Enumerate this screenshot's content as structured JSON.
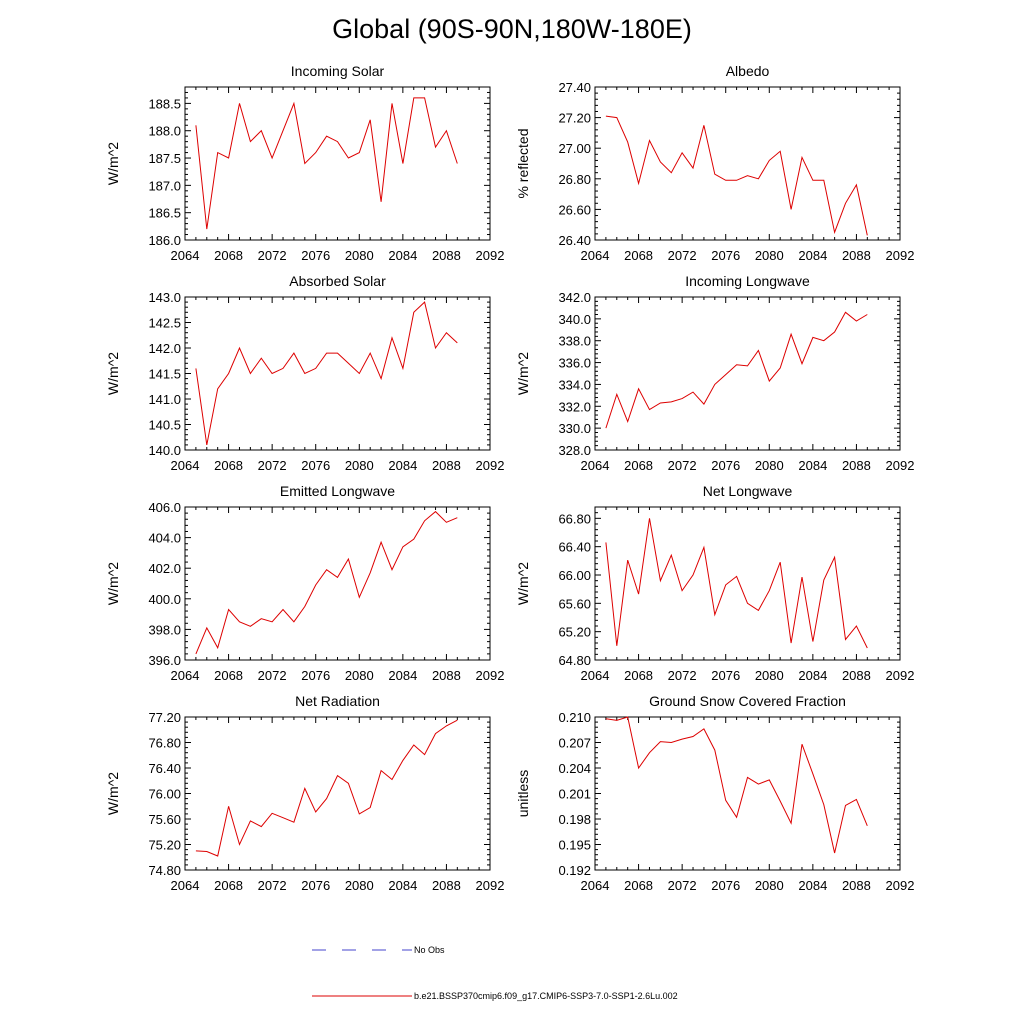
{
  "title": "Global (90S-90N,180W-180E)",
  "legend": {
    "obs_label": "No Obs",
    "model_label": "b.e21.BSSP370cmip6.f09_g17.CMIP6-SSP3-7.0-SSP1-2.6Lu.002",
    "obs_color": "#4444cc",
    "model_color": "#dd0000"
  },
  "chart_data": [
    {
      "type": "line",
      "title": "Incoming Solar",
      "ylabel": "W/m^2",
      "xlim": [
        2064,
        2092
      ],
      "ylim": [
        186.0,
        188.8
      ],
      "xticks": [
        "2064",
        "2068",
        "2072",
        "2076",
        "2080",
        "2084",
        "2088",
        "2092"
      ],
      "yticks": [
        "186.0",
        "186.5",
        "187.0",
        "187.5",
        "188.0",
        "188.5"
      ],
      "x": [
        2065,
        2066,
        2067,
        2068,
        2069,
        2070,
        2071,
        2072,
        2073,
        2074,
        2075,
        2076,
        2077,
        2078,
        2079,
        2080,
        2081,
        2082,
        2083,
        2084,
        2085,
        2086,
        2087,
        2088,
        2089
      ],
      "series": [
        {
          "values": [
            188.1,
            186.2,
            187.6,
            187.5,
            188.5,
            187.8,
            188.0,
            187.5,
            188.0,
            188.5,
            187.4,
            187.6,
            187.9,
            187.8,
            187.5,
            187.6,
            188.2,
            186.7,
            188.5,
            187.4,
            188.6,
            188.6,
            187.7,
            188.0,
            187.4
          ]
        }
      ]
    },
    {
      "type": "line",
      "title": "Albedo",
      "ylabel": "% reflected",
      "xlim": [
        2064,
        2092
      ],
      "ylim": [
        26.4,
        27.4
      ],
      "xticks": [
        "2064",
        "2068",
        "2072",
        "2076",
        "2080",
        "2084",
        "2088",
        "2092"
      ],
      "yticks": [
        "26.40",
        "26.60",
        "26.80",
        "27.00",
        "27.20",
        "27.40"
      ],
      "x": [
        2065,
        2066,
        2067,
        2068,
        2069,
        2070,
        2071,
        2072,
        2073,
        2074,
        2075,
        2076,
        2077,
        2078,
        2079,
        2080,
        2081,
        2082,
        2083,
        2084,
        2085,
        2086,
        2087,
        2088,
        2089
      ],
      "series": [
        {
          "values": [
            27.21,
            27.2,
            27.04,
            26.77,
            27.05,
            26.91,
            26.84,
            26.97,
            26.87,
            27.15,
            26.83,
            26.79,
            26.79,
            26.82,
            26.8,
            26.92,
            26.98,
            26.6,
            26.94,
            26.79,
            26.79,
            26.45,
            26.64,
            26.76,
            26.43
          ]
        }
      ]
    },
    {
      "type": "line",
      "title": "Absorbed Solar",
      "ylabel": "W/m^2",
      "xlim": [
        2064,
        2092
      ],
      "ylim": [
        140.0,
        143.0
      ],
      "xticks": [
        "2064",
        "2068",
        "2072",
        "2076",
        "2080",
        "2084",
        "2088",
        "2092"
      ],
      "yticks": [
        "140.0",
        "140.5",
        "141.0",
        "141.5",
        "142.0",
        "142.5",
        "143.0"
      ],
      "x": [
        2065,
        2066,
        2067,
        2068,
        2069,
        2070,
        2071,
        2072,
        2073,
        2074,
        2075,
        2076,
        2077,
        2078,
        2079,
        2080,
        2081,
        2082,
        2083,
        2084,
        2085,
        2086,
        2087,
        2088,
        2089
      ],
      "series": [
        {
          "values": [
            141.6,
            140.1,
            141.2,
            141.5,
            142.0,
            141.5,
            141.8,
            141.5,
            141.6,
            141.9,
            141.5,
            141.6,
            141.9,
            141.9,
            141.7,
            141.5,
            141.9,
            141.4,
            142.2,
            141.6,
            142.7,
            142.9,
            142.0,
            142.3,
            142.1
          ]
        }
      ]
    },
    {
      "type": "line",
      "title": "Incoming Longwave",
      "ylabel": "W/m^2",
      "xlim": [
        2064,
        2092
      ],
      "ylim": [
        328.0,
        342.0
      ],
      "xticks": [
        "2064",
        "2068",
        "2072",
        "2076",
        "2080",
        "2084",
        "2088",
        "2092"
      ],
      "yticks": [
        "328.0",
        "330.0",
        "332.0",
        "334.0",
        "336.0",
        "338.0",
        "340.0",
        "342.0"
      ],
      "x": [
        2065,
        2066,
        2067,
        2068,
        2069,
        2070,
        2071,
        2072,
        2073,
        2074,
        2075,
        2076,
        2077,
        2078,
        2079,
        2080,
        2081,
        2082,
        2083,
        2084,
        2085,
        2086,
        2087,
        2088,
        2089
      ],
      "series": [
        {
          "values": [
            330.0,
            333.1,
            330.6,
            333.6,
            331.7,
            332.3,
            332.4,
            332.7,
            333.3,
            332.2,
            334.0,
            334.9,
            335.8,
            335.7,
            337.1,
            334.3,
            335.5,
            338.6,
            335.9,
            338.3,
            338.0,
            338.8,
            340.6,
            339.8,
            340.4
          ]
        }
      ]
    },
    {
      "type": "line",
      "title": "Emitted Longwave",
      "ylabel": "W/m^2",
      "xlim": [
        2064,
        2092
      ],
      "ylim": [
        396.0,
        406.0
      ],
      "xticks": [
        "2064",
        "2068",
        "2072",
        "2076",
        "2080",
        "2084",
        "2088",
        "2092"
      ],
      "yticks": [
        "396.0",
        "398.0",
        "400.0",
        "402.0",
        "404.0",
        "406.0"
      ],
      "x": [
        2065,
        2066,
        2067,
        2068,
        2069,
        2070,
        2071,
        2072,
        2073,
        2074,
        2075,
        2076,
        2077,
        2078,
        2079,
        2080,
        2081,
        2082,
        2083,
        2084,
        2085,
        2086,
        2087,
        2088,
        2089
      ],
      "series": [
        {
          "values": [
            396.4,
            398.1,
            396.8,
            399.3,
            398.5,
            398.2,
            398.7,
            398.5,
            399.3,
            398.5,
            399.5,
            400.9,
            401.9,
            401.4,
            402.6,
            400.1,
            401.7,
            403.7,
            401.9,
            403.4,
            403.9,
            405.1,
            405.7,
            405.0,
            405.3
          ]
        }
      ]
    },
    {
      "type": "line",
      "title": "Net Longwave",
      "ylabel": "W/m^2",
      "xlim": [
        2064,
        2092
      ],
      "ylim": [
        64.8,
        66.96
      ],
      "xticks": [
        "2064",
        "2068",
        "2072",
        "2076",
        "2080",
        "2084",
        "2088",
        "2092"
      ],
      "yticks": [
        "64.80",
        "65.20",
        "65.60",
        "66.00",
        "66.40",
        "66.80"
      ],
      "x": [
        2065,
        2066,
        2067,
        2068,
        2069,
        2070,
        2071,
        2072,
        2073,
        2074,
        2075,
        2076,
        2077,
        2078,
        2079,
        2080,
        2081,
        2082,
        2083,
        2084,
        2085,
        2086,
        2087,
        2088,
        2089
      ],
      "series": [
        {
          "values": [
            66.46,
            65.0,
            66.21,
            65.73,
            66.8,
            65.92,
            66.28,
            65.78,
            66.0,
            66.39,
            65.44,
            65.86,
            65.98,
            65.6,
            65.5,
            65.78,
            66.18,
            65.04,
            65.97,
            65.06,
            65.93,
            66.25,
            65.09,
            65.28,
            64.97
          ]
        }
      ]
    },
    {
      "type": "line",
      "title": "Net Radiation",
      "ylabel": "W/m^2",
      "xlim": [
        2064,
        2092
      ],
      "ylim": [
        74.8,
        77.2
      ],
      "xticks": [
        "2064",
        "2068",
        "2072",
        "2076",
        "2080",
        "2084",
        "2088",
        "2092"
      ],
      "yticks": [
        "74.80",
        "75.20",
        "75.60",
        "76.00",
        "76.40",
        "76.80",
        "77.20"
      ],
      "x": [
        2065,
        2066,
        2067,
        2068,
        2069,
        2070,
        2071,
        2072,
        2073,
        2074,
        2075,
        2076,
        2077,
        2078,
        2079,
        2080,
        2081,
        2082,
        2083,
        2084,
        2085,
        2086,
        2087,
        2088,
        2089
      ],
      "series": [
        {
          "values": [
            75.1,
            75.09,
            75.02,
            75.8,
            75.2,
            75.57,
            75.48,
            75.69,
            75.62,
            75.55,
            76.08,
            75.71,
            75.92,
            76.28,
            76.16,
            75.68,
            75.78,
            76.36,
            76.22,
            76.52,
            76.76,
            76.61,
            76.94,
            77.06,
            77.15
          ]
        }
      ]
    },
    {
      "type": "line",
      "title": "Ground Snow Covered Fraction",
      "ylabel": "unitless",
      "xlim": [
        2064,
        2092
      ],
      "ylim": [
        0.192,
        0.21
      ],
      "xticks": [
        "2064",
        "2068",
        "2072",
        "2076",
        "2080",
        "2084",
        "2088",
        "2092"
      ],
      "yticks": [
        "0.192",
        "0.195",
        "0.198",
        "0.201",
        "0.204",
        "0.207",
        "0.210"
      ],
      "x": [
        2065,
        2066,
        2067,
        2068,
        2069,
        2070,
        2071,
        2072,
        2073,
        2074,
        2075,
        2076,
        2077,
        2078,
        2079,
        2080,
        2081,
        2082,
        2083,
        2084,
        2085,
        2086,
        2087,
        2088,
        2089
      ],
      "series": [
        {
          "values": [
            0.2098,
            0.2096,
            0.21,
            0.204,
            0.2058,
            0.2071,
            0.207,
            0.2074,
            0.2077,
            0.2086,
            0.2061,
            0.2002,
            0.1982,
            0.2029,
            0.2021,
            0.2026,
            0.2001,
            0.1975,
            0.2068,
            0.2033,
            0.1997,
            0.194,
            0.1996,
            0.2003,
            0.1972
          ]
        }
      ]
    }
  ]
}
